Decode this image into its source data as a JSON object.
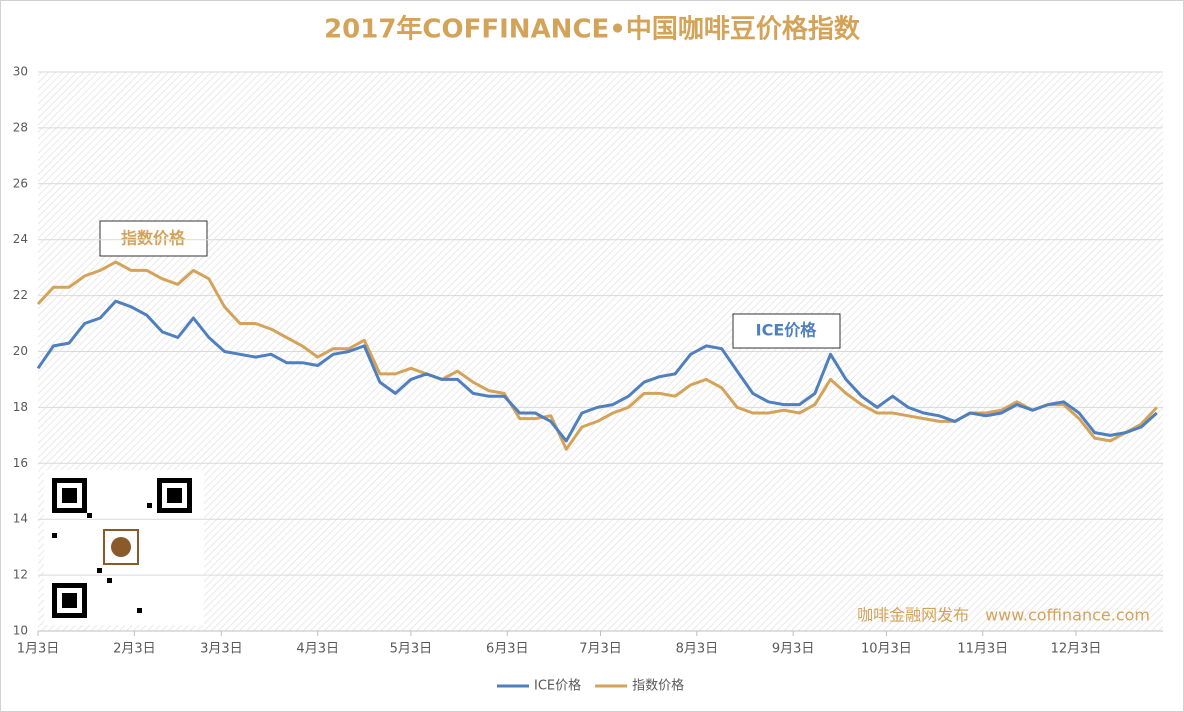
{
  "chart_data": {
    "type": "line",
    "title": "2017年COFFINANCE•中国咖啡豆价格指数",
    "x": [
      0,
      5,
      10,
      15,
      20,
      25,
      30,
      35,
      40,
      45,
      50,
      55,
      60,
      65,
      70,
      75,
      80,
      85,
      90,
      95,
      100,
      105,
      110,
      115,
      120,
      125,
      130,
      135,
      140,
      145,
      150,
      155,
      160,
      165,
      170,
      175,
      180,
      185,
      190,
      195,
      200,
      205,
      210,
      215,
      220,
      225,
      230,
      235,
      240,
      245,
      250,
      255,
      260,
      265,
      270,
      275,
      280,
      285,
      290,
      295,
      300,
      305,
      310,
      315,
      320,
      325,
      330,
      335,
      340,
      345,
      350,
      355,
      360
    ],
    "series": [
      {
        "name": "ICE价格",
        "color": "#4f7fbf",
        "values": [
          19.4,
          20.2,
          20.3,
          21.0,
          21.2,
          21.8,
          21.6,
          21.3,
          20.7,
          20.5,
          21.2,
          20.5,
          20.0,
          19.9,
          19.8,
          19.9,
          19.6,
          19.6,
          19.5,
          19.9,
          20.0,
          20.2,
          18.9,
          18.5,
          19.0,
          19.2,
          19.0,
          19.0,
          18.5,
          18.4,
          18.4,
          17.8,
          17.8,
          17.5,
          16.8,
          17.8,
          18.0,
          18.1,
          18.4,
          18.9,
          19.1,
          19.2,
          19.9,
          20.2,
          20.1,
          19.3,
          18.5,
          18.2,
          18.1,
          18.1,
          18.5,
          19.9,
          19.0,
          18.4,
          18.0,
          18.4,
          18.0,
          17.8,
          17.7,
          17.5,
          17.8,
          17.7,
          17.8,
          18.1,
          17.9,
          18.1,
          18.2,
          17.8,
          17.1,
          17.0,
          17.1,
          17.3,
          17.8
        ]
      },
      {
        "name": "指数价格",
        "color": "#d4a35a",
        "values": [
          21.7,
          22.3,
          22.3,
          22.7,
          22.9,
          23.2,
          22.9,
          22.9,
          22.6,
          22.4,
          22.9,
          22.6,
          21.6,
          21.0,
          21.0,
          20.8,
          20.5,
          20.2,
          19.8,
          20.1,
          20.1,
          20.4,
          19.2,
          19.2,
          19.4,
          19.2,
          19.0,
          19.3,
          18.9,
          18.6,
          18.5,
          17.6,
          17.6,
          17.7,
          16.5,
          17.3,
          17.5,
          17.8,
          18.0,
          18.5,
          18.5,
          18.4,
          18.8,
          19.0,
          18.7,
          18.0,
          17.8,
          17.8,
          17.9,
          17.8,
          18.1,
          19.0,
          18.5,
          18.1,
          17.8,
          17.8,
          17.7,
          17.6,
          17.5,
          17.5,
          17.8,
          17.8,
          17.9,
          18.2,
          17.9,
          18.1,
          18.1,
          17.6,
          16.9,
          16.8,
          17.1,
          17.4,
          18.0
        ]
      }
    ],
    "xlim": [
      0,
      362
    ],
    "xticks": [
      {
        "value": 0,
        "label": "1月3日"
      },
      {
        "value": 31,
        "label": "2月3日"
      },
      {
        "value": 59,
        "label": "3月3日"
      },
      {
        "value": 90,
        "label": "4月3日"
      },
      {
        "value": 120,
        "label": "5月3日"
      },
      {
        "value": 151,
        "label": "6月3日"
      },
      {
        "value": 181,
        "label": "7月3日"
      },
      {
        "value": 212,
        "label": "8月3日"
      },
      {
        "value": 243,
        "label": "9月3日"
      },
      {
        "value": 273,
        "label": "10月3日"
      },
      {
        "value": 304,
        "label": "11月3日"
      },
      {
        "value": 334,
        "label": "12月3日"
      }
    ],
    "ylim": [
      10,
      30
    ],
    "yticks": [
      10,
      12,
      14,
      16,
      18,
      20,
      22,
      24,
      26,
      28,
      30
    ],
    "grid": true,
    "legend": "bottom",
    "annotations": [
      "指数价格",
      "ICE价格"
    ],
    "watermark": "咖啡金融网发布　www.coffinance.com"
  }
}
